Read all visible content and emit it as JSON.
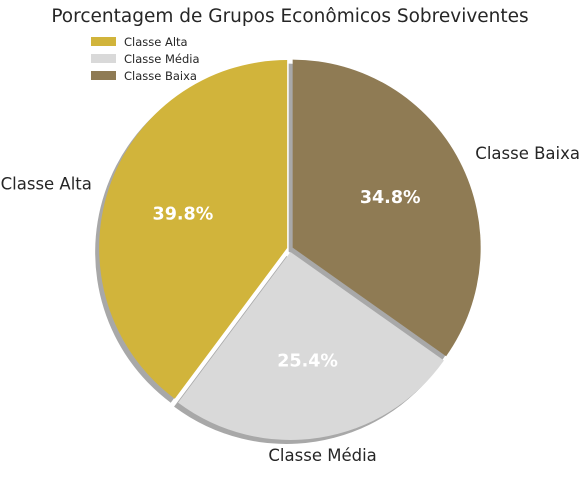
{
  "chart_data": {
    "type": "pie",
    "title": "Porcentagem de Grupos Econômicos Sobreviventes",
    "categories": [
      "Classe Alta",
      "Classe Média",
      "Classe Baixa"
    ],
    "values": [
      39.8,
      25.4,
      34.8
    ],
    "value_labels": [
      "39.8%",
      "25.4%",
      "34.8%"
    ],
    "colors": [
      "#D1B43B",
      "#D9D9D9",
      "#8F7B54"
    ],
    "legend": {
      "position": "top-left",
      "entries": [
        "Classe Alta",
        "Classe Média",
        "Classe Baixa"
      ]
    },
    "start_angle_deg": 90,
    "direction": "counterclockwise",
    "exploded": true,
    "shadow": true
  }
}
